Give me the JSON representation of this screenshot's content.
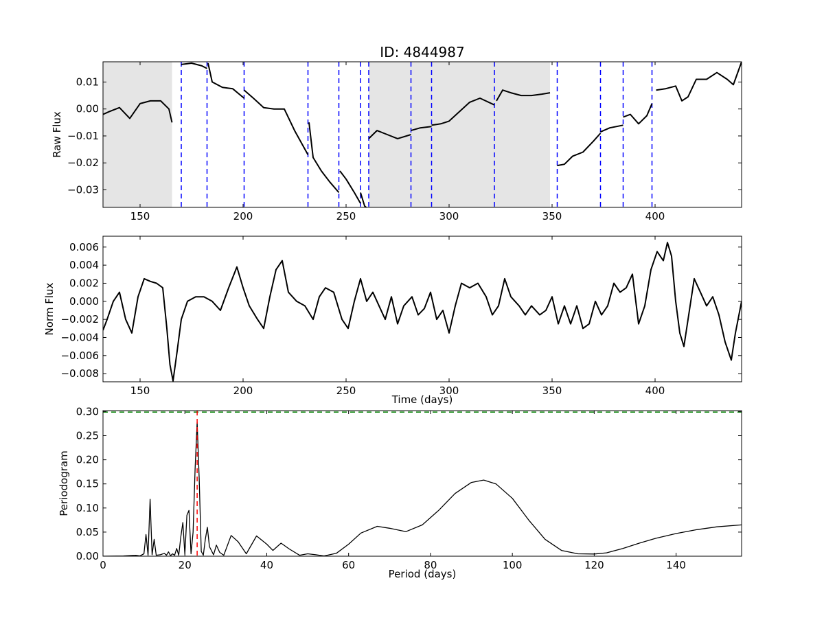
{
  "figure": {
    "title": "ID: 4844987"
  },
  "colors": {
    "trace": "#000000",
    "gap_dashes": "#0000ff",
    "shading": "#e5e5e5",
    "threshold": "#008000",
    "peak_marker": "#ff0000"
  },
  "chart_data": [
    {
      "type": "line",
      "ylabel": "Raw Flux",
      "xlabel": "",
      "xlim": [
        132,
        442
      ],
      "ylim": [
        -0.0365,
        0.0175
      ],
      "xticks": [
        150,
        200,
        250,
        300,
        350,
        400
      ],
      "yticks": [
        -0.03,
        -0.02,
        -0.01,
        0.0,
        0.01
      ],
      "ytick_labels": [
        "−0.03",
        "−0.02",
        "−0.01",
        "0.00",
        "0.01"
      ],
      "shaded_regions": [
        [
          132,
          165.5
        ],
        [
          261,
          349
        ]
      ],
      "dashed_lines": [
        170,
        182.5,
        200.5,
        231.5,
        246.5,
        257,
        261,
        281.5,
        291.5,
        322,
        352.5,
        373.5,
        384.5,
        398.5
      ],
      "segments": [
        {
          "x": [
            132,
            135,
            140,
            145,
            150,
            155,
            160,
            164,
            165.5
          ],
          "y": [
            -0.002,
            -0.001,
            0.0005,
            -0.0035,
            0.002,
            0.003,
            0.003,
            0.0,
            -0.005
          ]
        },
        {
          "x": [
            170,
            175,
            180,
            182.5
          ],
          "y": [
            0.0165,
            0.017,
            0.016,
            0.015
          ]
        },
        {
          "x": [
            183,
            185,
            190,
            195,
            200.5
          ],
          "y": [
            0.017,
            0.01,
            0.008,
            0.0075,
            0.004
          ]
        },
        {
          "x": [
            200.5,
            205,
            210,
            215,
            220,
            225,
            231.5
          ],
          "y": [
            0.007,
            0.004,
            0.0005,
            0.0,
            0.0,
            -0.008,
            -0.017
          ]
        },
        {
          "x": [
            232,
            234,
            238,
            242,
            246.5
          ],
          "y": [
            -0.005,
            -0.018,
            -0.023,
            -0.027,
            -0.031
          ]
        },
        {
          "x": [
            247,
            250,
            254,
            257
          ],
          "y": [
            -0.023,
            -0.026,
            -0.031,
            -0.035
          ]
        },
        {
          "x": [
            257,
            259,
            260.5
          ],
          "y": [
            -0.031,
            -0.036,
            -0.037
          ]
        },
        {
          "x": [
            261,
            265,
            270,
            275,
            281.5
          ],
          "y": [
            -0.011,
            -0.008,
            -0.0095,
            -0.011,
            -0.0095
          ]
        },
        {
          "x": [
            281.5,
            286,
            291.5
          ],
          "y": [
            -0.008,
            -0.007,
            -0.0065
          ]
        },
        {
          "x": [
            291.5,
            296,
            300,
            305,
            310,
            315,
            322
          ],
          "y": [
            -0.006,
            -0.0055,
            -0.0045,
            -0.001,
            0.0025,
            0.004,
            0.0015
          ]
        },
        {
          "x": [
            323,
            326,
            330,
            335,
            340,
            345,
            349
          ],
          "y": [
            0.003,
            0.007,
            0.006,
            0.005,
            0.005,
            0.0055,
            0.006
          ]
        },
        {
          "x": [
            352.5,
            356,
            360,
            365,
            370,
            373.5
          ],
          "y": [
            -0.021,
            -0.0205,
            -0.0175,
            -0.016,
            -0.012,
            -0.009
          ]
        },
        {
          "x": [
            373.5,
            378,
            384.5
          ],
          "y": [
            -0.0085,
            -0.007,
            -0.006
          ]
        },
        {
          "x": [
            384.5,
            388,
            392,
            396,
            398.5
          ],
          "y": [
            -0.003,
            -0.002,
            -0.0055,
            -0.0025,
            0.002
          ]
        },
        {
          "x": [
            400.5,
            405,
            410,
            413,
            416,
            420,
            425,
            430,
            435,
            438,
            442
          ],
          "y": [
            0.007,
            0.0075,
            0.0085,
            0.003,
            0.0045,
            0.011,
            0.011,
            0.0135,
            0.011,
            0.009,
            0.0175
          ]
        }
      ]
    },
    {
      "type": "line",
      "ylabel": "Norm Flux",
      "xlabel": "Time (days)",
      "xlim": [
        132,
        442
      ],
      "ylim": [
        -0.0089,
        0.0072
      ],
      "xticks": [
        150,
        200,
        250,
        300,
        350,
        400
      ],
      "yticks": [
        -0.008,
        -0.006,
        -0.004,
        -0.002,
        0.0,
        0.002,
        0.004,
        0.006
      ],
      "ytick_labels": [
        "−0.008",
        "−0.006",
        "−0.004",
        "−0.002",
        "0.000",
        "0.002",
        "0.004",
        "0.006"
      ],
      "x": [
        132,
        134,
        137,
        140,
        143,
        146,
        149,
        152,
        155,
        158,
        161,
        163,
        164.5,
        166,
        168,
        170,
        173,
        177,
        181,
        185,
        189,
        193,
        197,
        200,
        203,
        207,
        210,
        213,
        216,
        219,
        222,
        226,
        230,
        234,
        237,
        240,
        244,
        248,
        251,
        254,
        257,
        260,
        263,
        266,
        269,
        272,
        275,
        278,
        282,
        285,
        288,
        291,
        294,
        297,
        300,
        303,
        306,
        310,
        314,
        318,
        321,
        324,
        327,
        330,
        334,
        337,
        340,
        344,
        347,
        350,
        353,
        356,
        359,
        362,
        365,
        368,
        371,
        374,
        377,
        380,
        383,
        386,
        389,
        392,
        395,
        398,
        401,
        404,
        406,
        408,
        410,
        412,
        414,
        416,
        419,
        422,
        425,
        428,
        431,
        434,
        437,
        439,
        442
      ],
      "y": [
        -0.0032,
        -0.002,
        0.0,
        0.001,
        -0.002,
        -0.0035,
        0.0005,
        0.0025,
        0.0022,
        0.002,
        0.0015,
        -0.003,
        -0.007,
        -0.0088,
        -0.0055,
        -0.002,
        0.0,
        0.0005,
        0.0005,
        0.0,
        -0.001,
        0.0015,
        0.0038,
        0.0015,
        -0.0005,
        -0.002,
        -0.003,
        0.0005,
        0.0035,
        0.0045,
        0.001,
        0.0,
        -0.0005,
        -0.002,
        0.0005,
        0.0015,
        0.001,
        -0.002,
        -0.003,
        0.0,
        0.0025,
        0.0,
        0.001,
        -0.0005,
        -0.002,
        0.0005,
        -0.0025,
        -0.0005,
        0.0005,
        -0.0015,
        -0.0008,
        0.001,
        -0.002,
        -0.001,
        -0.0035,
        -0.0005,
        0.002,
        0.0015,
        0.002,
        0.0005,
        -0.0015,
        -0.0005,
        0.0025,
        0.0005,
        -0.0005,
        -0.0015,
        -0.0005,
        -0.0015,
        -0.001,
        0.0005,
        -0.0025,
        -0.0005,
        -0.0025,
        -0.0005,
        -0.003,
        -0.0025,
        0.0,
        -0.0015,
        -0.0005,
        0.002,
        0.001,
        0.0015,
        0.003,
        -0.0025,
        -0.0005,
        0.0035,
        0.0055,
        0.0045,
        0.0065,
        0.005,
        0.0,
        -0.0035,
        -0.005,
        -0.002,
        0.0025,
        0.001,
        -0.0005,
        0.0005,
        -0.0015,
        -0.0045,
        -0.0065,
        -0.0035,
        0.0
      ]
    },
    {
      "type": "line",
      "ylabel": "Periodogram",
      "xlabel": "Period (days)",
      "xlim": [
        0,
        156
      ],
      "ylim": [
        0,
        0.302
      ],
      "xticks": [
        0,
        20,
        40,
        60,
        80,
        100,
        120,
        140
      ],
      "yticks": [
        0.0,
        0.05,
        0.1,
        0.15,
        0.2,
        0.25,
        0.3
      ],
      "ytick_labels": [
        "0.00",
        "0.05",
        "0.10",
        "0.15",
        "0.20",
        "0.25",
        "0.30"
      ],
      "threshold": 0.299,
      "peak_period": 23.0,
      "x": [
        0,
        5,
        8,
        9,
        10,
        10.5,
        11,
        11.5,
        12,
        12.5,
        13,
        14,
        15,
        15.5,
        16,
        16.5,
        17,
        17.5,
        18,
        18.5,
        19,
        19.5,
        20,
        20.5,
        21,
        21.5,
        22,
        22.5,
        23,
        23.5,
        24,
        24.5,
        25,
        25.5,
        26,
        27,
        27.7,
        28.5,
        29.5,
        31.3,
        33,
        35,
        37.5,
        40,
        41.5,
        43.5,
        45.5,
        48,
        50,
        52,
        54,
        57,
        60,
        63,
        67,
        70,
        74,
        78,
        82,
        86,
        90,
        93,
        96,
        100,
        104,
        108,
        112,
        116,
        120,
        123,
        127,
        131,
        135,
        140,
        145,
        150,
        156
      ],
      "y": [
        0,
        0.0005,
        0.002,
        0.0005,
        0.005,
        0.045,
        0.002,
        0.118,
        0.003,
        0.035,
        0.002,
        0.003,
        0.006,
        0.002,
        0.009,
        0.001,
        0.005,
        0.002,
        0.016,
        0.002,
        0.04,
        0.07,
        0.004,
        0.085,
        0.095,
        0.005,
        0.05,
        0.18,
        0.278,
        0.16,
        0.01,
        0.002,
        0.035,
        0.06,
        0.02,
        0.003,
        0.023,
        0.008,
        0.002,
        0.043,
        0.03,
        0.005,
        0.042,
        0.025,
        0.012,
        0.027,
        0.015,
        0.002,
        0.005,
        0.003,
        0.0005,
        0.006,
        0.025,
        0.048,
        0.062,
        0.058,
        0.051,
        0.065,
        0.095,
        0.13,
        0.153,
        0.158,
        0.15,
        0.12,
        0.075,
        0.035,
        0.012,
        0.005,
        0.0045,
        0.007,
        0.016,
        0.027,
        0.037,
        0.047,
        0.055,
        0.061,
        0.065
      ]
    }
  ]
}
